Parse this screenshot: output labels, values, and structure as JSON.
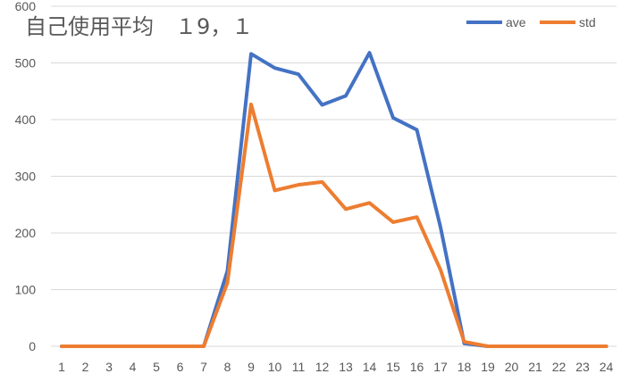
{
  "chart_data": {
    "type": "line",
    "title": "自己使用平均　１9，１",
    "xlabel": "",
    "ylabel": "",
    "ylim": [
      0,
      600
    ],
    "yticks": [
      0,
      100,
      200,
      300,
      400,
      500,
      600
    ],
    "categories": [
      "1",
      "2",
      "3",
      "4",
      "5",
      "6",
      "7",
      "8",
      "9",
      "10",
      "11",
      "12",
      "13",
      "14",
      "15",
      "16",
      "17",
      "18",
      "19",
      "20",
      "21",
      "22",
      "23",
      "24"
    ],
    "grid": true,
    "legend_position": "top-right",
    "series": [
      {
        "name": "ave",
        "color": "#4472C4",
        "values": [
          0,
          0,
          0,
          0,
          0,
          0,
          0,
          133,
          516,
          491,
          480,
          426,
          442,
          518,
          403,
          382,
          210,
          5,
          0,
          0,
          0,
          0,
          0,
          0
        ]
      },
      {
        "name": "std",
        "color": "#ED7D31",
        "values": [
          0,
          0,
          0,
          0,
          0,
          0,
          0,
          112,
          427,
          275,
          285,
          290,
          242,
          253,
          219,
          228,
          135,
          8,
          0,
          0,
          0,
          0,
          0,
          0
        ]
      }
    ]
  }
}
